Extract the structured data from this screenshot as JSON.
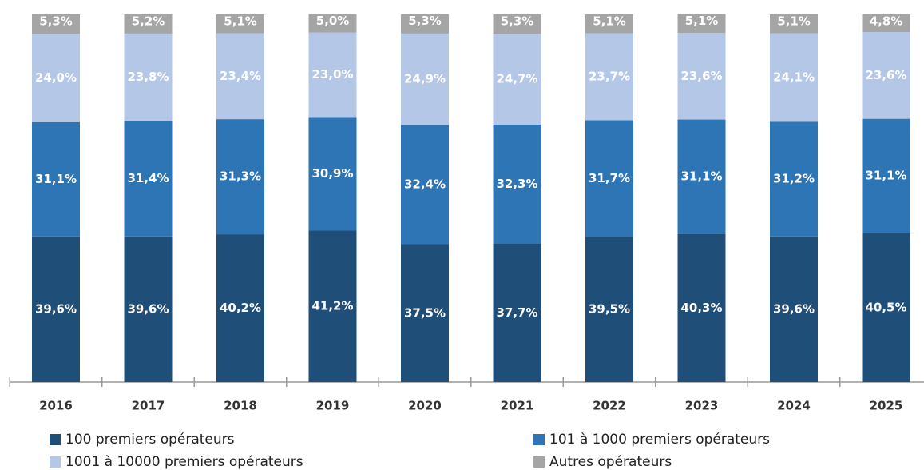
{
  "chart_data": {
    "type": "stacked_bar",
    "categories": [
      "2016",
      "2017",
      "2018",
      "2019",
      "2020",
      "2021",
      "2022",
      "2023",
      "2024",
      "2025"
    ],
    "ylim": [
      0,
      100
    ],
    "series": [
      {
        "name": "100 premiers opérateurs",
        "color": "#1f4e79",
        "values": [
          39.6,
          39.6,
          40.2,
          41.2,
          37.5,
          37.7,
          39.5,
          40.3,
          39.6,
          40.5
        ],
        "value_labels": [
          "39,6%",
          "39,6%",
          "40,2%",
          "41,2%",
          "37,5%",
          "37,7%",
          "39,5%",
          "40,3%",
          "39,6%",
          "40,5%"
        ]
      },
      {
        "name": "101 à 1000 premiers opérateurs",
        "color": "#2e75b6",
        "values": [
          31.1,
          31.4,
          31.3,
          30.9,
          32.4,
          32.3,
          31.7,
          31.1,
          31.2,
          31.1
        ],
        "value_labels": [
          "31,1%",
          "31,4%",
          "31,3%",
          "30,9%",
          "32,4%",
          "32,3%",
          "31,7%",
          "31,1%",
          "31,2%",
          "31,1%"
        ]
      },
      {
        "name": "1001 à 10000 premiers opérateurs",
        "color": "#b4c7e7",
        "values": [
          24.0,
          23.8,
          23.4,
          23.0,
          24.9,
          24.7,
          23.7,
          23.6,
          24.1,
          23.6
        ],
        "value_labels": [
          "24,0%",
          "23,8%",
          "23,4%",
          "23,0%",
          "24,9%",
          "24,7%",
          "23,7%",
          "23,6%",
          "24,1%",
          "23,6%"
        ]
      },
      {
        "name": "Autres opérateurs",
        "color": "#a5a5a5",
        "values": [
          5.3,
          5.2,
          5.1,
          5.0,
          5.3,
          5.3,
          5.1,
          5.1,
          5.1,
          4.8
        ],
        "value_labels": [
          "5,3%",
          "5,2%",
          "5,1%",
          "5,0%",
          "5,3%",
          "5,3%",
          "5,1%",
          "5,1%",
          "5,1%",
          "4,8%"
        ]
      }
    ]
  }
}
